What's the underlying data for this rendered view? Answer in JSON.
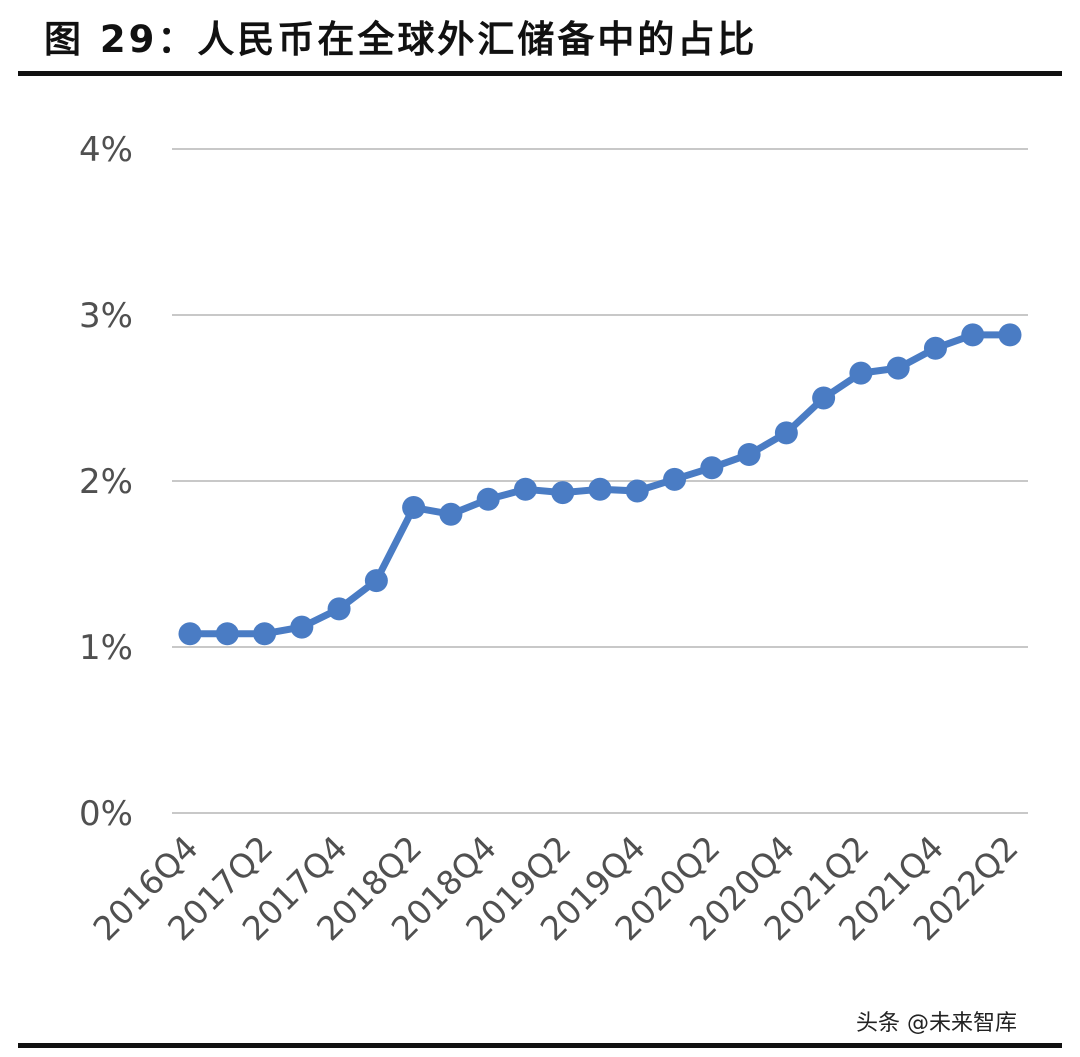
{
  "title": "图 29：人民币在全球外汇储备中的占比",
  "watermark": "头条 @未来智库",
  "colors": {
    "line": "#4a7cc4",
    "grid": "#c8c8c8",
    "tick_text": "#505050",
    "rule": "#111111"
  },
  "chart_data": {
    "type": "line",
    "title": "",
    "xlabel": "",
    "ylabel": "",
    "ylim": [
      0,
      4
    ],
    "yticks": [
      0,
      1,
      2,
      3,
      4
    ],
    "ytick_labels": [
      "0%",
      "1%",
      "2%",
      "3%",
      "4%"
    ],
    "grid": true,
    "legend": "none",
    "x": [
      "2016Q4",
      "2017Q1",
      "2017Q2",
      "2017Q3",
      "2017Q4",
      "2018Q1",
      "2018Q2",
      "2018Q3",
      "2018Q4",
      "2019Q1",
      "2019Q2",
      "2019Q3",
      "2019Q4",
      "2020Q1",
      "2020Q2",
      "2020Q3",
      "2020Q4",
      "2021Q1",
      "2021Q2",
      "2021Q3",
      "2021Q4",
      "2022Q1",
      "2022Q2"
    ],
    "xtick_labels": [
      "2016Q4",
      "2017Q2",
      "2017Q4",
      "2018Q2",
      "2018Q4",
      "2019Q2",
      "2019Q4",
      "2020Q2",
      "2020Q4",
      "2021Q2",
      "2021Q4",
      "2022Q2"
    ],
    "series": [
      {
        "values": [
          1.08,
          1.08,
          1.08,
          1.12,
          1.23,
          1.4,
          1.84,
          1.8,
          1.89,
          1.95,
          1.93,
          1.95,
          1.94,
          2.01,
          2.08,
          2.16,
          2.29,
          2.5,
          2.65,
          2.68,
          2.8,
          2.88,
          2.88
        ]
      }
    ]
  }
}
